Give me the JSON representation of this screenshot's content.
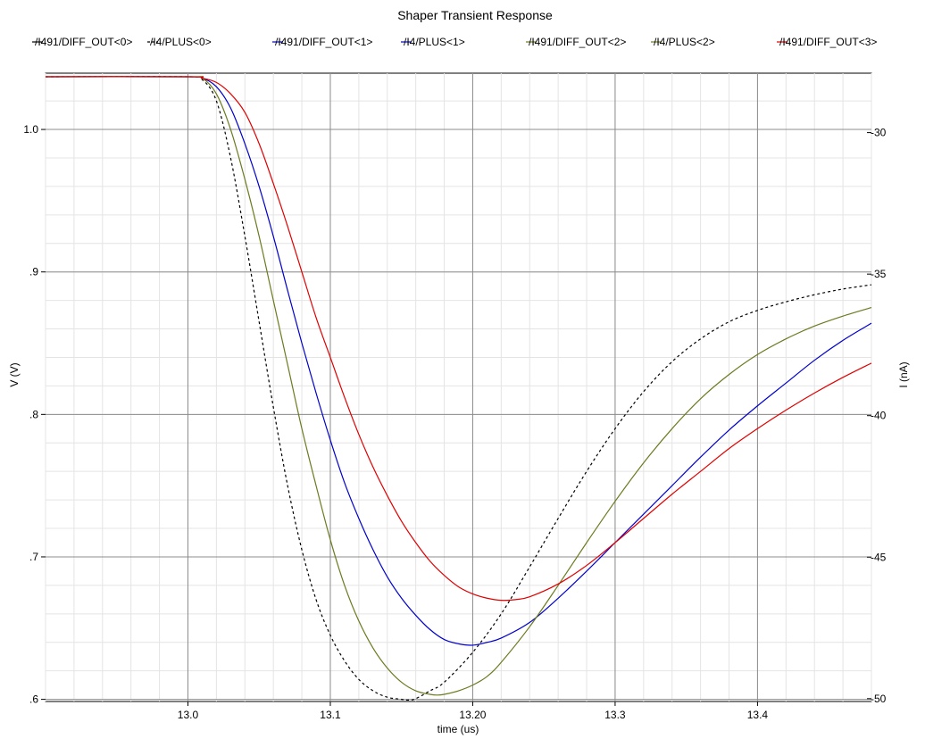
{
  "chart_data": {
    "type": "line",
    "title": "Shaper Transient Response",
    "xlabel": "time (us)",
    "ylabel": "V (V)",
    "y2label": "I (nA)",
    "xlim": [
      12.9,
      13.48
    ],
    "ylim": [
      0.5985,
      1.0395
    ],
    "y2lim": [
      -50.1,
      -27.9
    ],
    "x_ticks": [
      {
        "value": 13.0,
        "label": "13.0"
      },
      {
        "value": 13.1,
        "label": "13.1"
      },
      {
        "value": 13.2,
        "label": "13.20"
      },
      {
        "value": 13.3,
        "label": "13.3"
      },
      {
        "value": 13.4,
        "label": "13.4"
      }
    ],
    "y_ticks": [
      {
        "value": 1.0,
        "label": "1.0"
      },
      {
        "value": 0.9,
        "label": ".9"
      },
      {
        "value": 0.8,
        "label": ".8"
      },
      {
        "value": 0.7,
        "label": ".7"
      },
      {
        "value": 0.6,
        "label": ".6"
      }
    ],
    "y2_ticks": [
      {
        "value": -30,
        "label": "-30"
      },
      {
        "value": -35,
        "label": "-35"
      },
      {
        "value": -40,
        "label": "-40"
      },
      {
        "value": -45,
        "label": "-45"
      },
      {
        "value": -50,
        "label": "-50"
      }
    ],
    "grid": true,
    "legend_position": "top",
    "legend": [
      {
        "label": "/I491/DIFF_OUT<0>",
        "color": "#000000",
        "dash": "none"
      },
      {
        "label": "/I4/PLUS<0>",
        "color": "#000000",
        "dash": "dashed"
      },
      {
        "label": "/I491/DIFF_OUT<1>",
        "color": "#0000cc",
        "dash": "none"
      },
      {
        "label": "/I4/PLUS<1>",
        "color": "#0000cc",
        "dash": "none"
      },
      {
        "label": "/I491/DIFF_OUT<2>",
        "color": "#6b7a1e",
        "dash": "none"
      },
      {
        "label": "/I4/PLUS<2>",
        "color": "#6b7a1e",
        "dash": "none"
      },
      {
        "label": "/I491/DIFF_OUT<3>",
        "color": "#e00000",
        "dash": "none"
      }
    ],
    "series": [
      {
        "color": "#000000",
        "dash": "dashed",
        "x": [
          12.9,
          13.0,
          13.01,
          13.02,
          13.03,
          13.04,
          13.05,
          13.06,
          13.07,
          13.08,
          13.09,
          13.1,
          13.11,
          13.12,
          13.13,
          13.14,
          13.15,
          13.155,
          13.16,
          13.17,
          13.18,
          13.2,
          13.22,
          13.24,
          13.26,
          13.28,
          13.3,
          13.32,
          13.34,
          13.36,
          13.38,
          13.4,
          13.42,
          13.44,
          13.46,
          13.48
        ],
        "y": [
          1.037,
          1.037,
          1.035,
          1.02,
          0.98,
          0.925,
          0.865,
          0.805,
          0.75,
          0.705,
          0.67,
          0.645,
          0.627,
          0.614,
          0.606,
          0.6015,
          0.6,
          0.5995,
          0.6005,
          0.606,
          0.612,
          0.633,
          0.66,
          0.693,
          0.727,
          0.76,
          0.79,
          0.816,
          0.837,
          0.853,
          0.865,
          0.873,
          0.879,
          0.884,
          0.888,
          0.891
        ]
      },
      {
        "color": "#0000cc",
        "dash": "none",
        "x": [
          12.9,
          13.0,
          13.01,
          13.02,
          13.03,
          13.04,
          13.05,
          13.06,
          13.07,
          13.08,
          13.09,
          13.1,
          13.11,
          13.12,
          13.13,
          13.14,
          13.15,
          13.16,
          13.17,
          13.18,
          13.19,
          13.2,
          13.21,
          13.22,
          13.24,
          13.26,
          13.28,
          13.3,
          13.32,
          13.34,
          13.36,
          13.38,
          13.4,
          13.42,
          13.44,
          13.46,
          13.48
        ],
        "y": [
          1.037,
          1.037,
          1.036,
          1.03,
          1.015,
          0.99,
          0.96,
          0.925,
          0.887,
          0.85,
          0.815,
          0.782,
          0.752,
          0.727,
          0.705,
          0.686,
          0.671,
          0.659,
          0.649,
          0.642,
          0.639,
          0.638,
          0.64,
          0.643,
          0.654,
          0.671,
          0.69,
          0.71,
          0.73,
          0.75,
          0.77,
          0.789,
          0.806,
          0.822,
          0.838,
          0.852,
          0.864
        ]
      },
      {
        "color": "#6b7a1e",
        "dash": "none",
        "x": [
          12.9,
          13.0,
          13.01,
          13.02,
          13.03,
          13.04,
          13.05,
          13.06,
          13.07,
          13.08,
          13.09,
          13.1,
          13.11,
          13.12,
          13.13,
          13.14,
          13.15,
          13.16,
          13.17,
          13.175,
          13.18,
          13.19,
          13.2,
          13.21,
          13.22,
          13.24,
          13.26,
          13.28,
          13.3,
          13.32,
          13.34,
          13.36,
          13.38,
          13.4,
          13.42,
          13.44,
          13.46,
          13.48
        ],
        "y": [
          1.037,
          1.037,
          1.036,
          1.025,
          1.0,
          0.965,
          0.925,
          0.88,
          0.835,
          0.79,
          0.75,
          0.712,
          0.68,
          0.655,
          0.636,
          0.622,
          0.612,
          0.606,
          0.6035,
          0.603,
          0.6035,
          0.606,
          0.61,
          0.616,
          0.626,
          0.651,
          0.68,
          0.71,
          0.739,
          0.766,
          0.79,
          0.811,
          0.828,
          0.842,
          0.853,
          0.862,
          0.869,
          0.875
        ]
      },
      {
        "color": "#e00000",
        "dash": "none",
        "x": [
          12.9,
          13.0,
          13.01,
          13.02,
          13.03,
          13.04,
          13.05,
          13.06,
          13.07,
          13.08,
          13.09,
          13.1,
          13.11,
          13.12,
          13.13,
          13.14,
          13.15,
          13.16,
          13.17,
          13.18,
          13.19,
          13.2,
          13.21,
          13.22,
          13.23,
          13.24,
          13.26,
          13.28,
          13.3,
          13.32,
          13.34,
          13.36,
          13.38,
          13.4,
          13.42,
          13.44,
          13.46,
          13.48
        ],
        "y": [
          1.037,
          1.037,
          1.036,
          1.033,
          1.025,
          1.012,
          0.99,
          0.962,
          0.932,
          0.9,
          0.868,
          0.84,
          0.812,
          0.786,
          0.763,
          0.743,
          0.725,
          0.71,
          0.697,
          0.687,
          0.679,
          0.674,
          0.671,
          0.6695,
          0.67,
          0.672,
          0.681,
          0.694,
          0.71,
          0.727,
          0.744,
          0.76,
          0.776,
          0.79,
          0.803,
          0.815,
          0.826,
          0.836
        ]
      }
    ]
  }
}
